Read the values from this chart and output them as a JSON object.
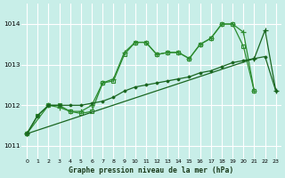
{
  "title": "Graphe pression niveau de la mer (hPa)",
  "bg_color": "#c8eee8",
  "grid_color": "#ffffff",
  "line_color_dark": "#1a6620",
  "line_color_light": "#2d8c30",
  "xlim": [
    -0.5,
    23.5
  ],
  "ylim": [
    1010.7,
    1014.5
  ],
  "yticks": [
    1011,
    1012,
    1013,
    1014
  ],
  "xticks": [
    0,
    1,
    2,
    3,
    4,
    5,
    6,
    7,
    8,
    9,
    10,
    11,
    12,
    13,
    14,
    15,
    16,
    17,
    18,
    19,
    20,
    21,
    22,
    23
  ],
  "series1_x": [
    0,
    1,
    2,
    3,
    4,
    5,
    6,
    7,
    8,
    9,
    10,
    11,
    12,
    13,
    14,
    15,
    16,
    17,
    18,
    19,
    20,
    21
  ],
  "series1_y": [
    1011.3,
    1011.75,
    1012.0,
    1012.0,
    1011.85,
    1011.8,
    1011.85,
    1012.55,
    1012.6,
    1013.25,
    1013.55,
    1013.55,
    1013.25,
    1013.3,
    1013.3,
    1013.15,
    1013.5,
    1013.65,
    1014.0,
    1014.0,
    1013.45,
    1012.35
  ],
  "series2_x": [
    0,
    2,
    3,
    4,
    5,
    6,
    7,
    8,
    9,
    10,
    11,
    12,
    13,
    14,
    15,
    16,
    17,
    18,
    19,
    20,
    21
  ],
  "series2_y": [
    1011.3,
    1012.0,
    1011.95,
    1011.85,
    1011.85,
    1012.0,
    1012.55,
    1012.65,
    1013.3,
    1013.55,
    1013.55,
    1013.25,
    1013.3,
    1013.3,
    1013.15,
    1013.5,
    1013.65,
    1014.0,
    1014.0,
    1013.8,
    1012.35
  ],
  "series3_x": [
    0,
    1,
    2,
    3,
    4,
    5,
    6,
    7,
    8,
    9,
    10,
    11,
    12,
    13,
    14,
    15,
    16,
    17,
    18,
    19,
    20,
    21,
    22,
    23
  ],
  "series3_y": [
    1011.3,
    1011.75,
    1012.0,
    1012.0,
    1012.0,
    1012.0,
    1012.05,
    1012.1,
    1012.2,
    1012.35,
    1012.45,
    1012.5,
    1012.55,
    1012.6,
    1012.65,
    1012.7,
    1012.8,
    1012.85,
    1012.95,
    1013.05,
    1013.1,
    1013.15,
    1013.2,
    1012.35
  ],
  "series4_x": [
    0,
    21,
    22,
    23
  ],
  "series4_y": [
    1011.3,
    1013.15,
    1013.85,
    1012.35
  ]
}
